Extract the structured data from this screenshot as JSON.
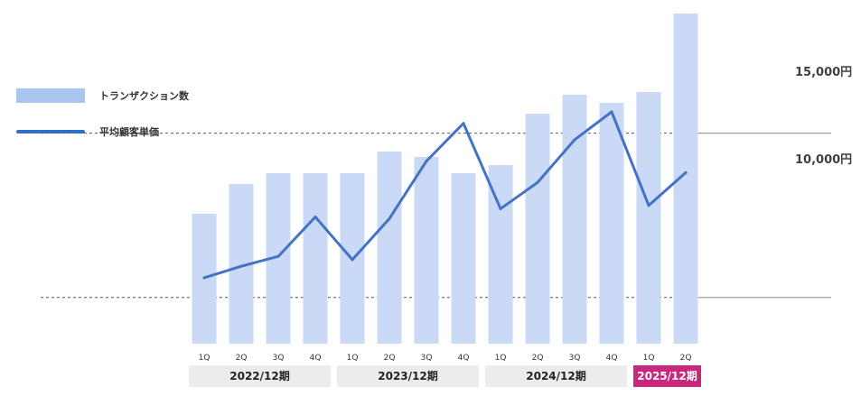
{
  "legend": {
    "bar_label": "トランザクション数",
    "line_label": "平均顧客単価"
  },
  "reference_lines": [
    {
      "label": "15,000円",
      "value": 15000
    },
    {
      "label": "10,000円",
      "value": 10000
    }
  ],
  "periods": [
    {
      "label": "2022/12期",
      "start": 0,
      "end": 3,
      "highlight": false
    },
    {
      "label": "2023/12期",
      "start": 4,
      "end": 7,
      "highlight": false
    },
    {
      "label": "2024/12期",
      "start": 8,
      "end": 11,
      "highlight": false
    },
    {
      "label": "2025/12期",
      "start": 12,
      "end": 13,
      "highlight": true
    }
  ],
  "colors": {
    "bar": "#c9d9f6",
    "line": "#4472c4",
    "legend_bar": "#a8c5f0",
    "legend_line": "#2f6fc4",
    "period_box": "#ececec",
    "period_highlight": "#c8277d",
    "reference_line": "#555555"
  },
  "chart_data": {
    "type": "bar",
    "categories": [
      "1Q",
      "2Q",
      "3Q",
      "4Q",
      "1Q",
      "2Q",
      "3Q",
      "4Q",
      "1Q",
      "2Q",
      "3Q",
      "4Q",
      "1Q",
      "2Q"
    ],
    "series": [
      {
        "name": "トランザクション数",
        "type": "bar",
        "axis": "unlabeled",
        "values": [
          48,
          59,
          63,
          63,
          63,
          71,
          69,
          63,
          66,
          85,
          92,
          89,
          93,
          122
        ]
      },
      {
        "name": "平均顧客単価",
        "type": "line",
        "axis": "yen",
        "values": [
          10600,
          10950,
          11250,
          12450,
          11150,
          12400,
          14150,
          15300,
          12700,
          13500,
          14800,
          15650,
          12800,
          13800
        ]
      }
    ],
    "y_yen_range": [
      7000,
      19000
    ],
    "y_bar_range": [
      0,
      126
    ],
    "grid": false,
    "legend_position": "left"
  }
}
